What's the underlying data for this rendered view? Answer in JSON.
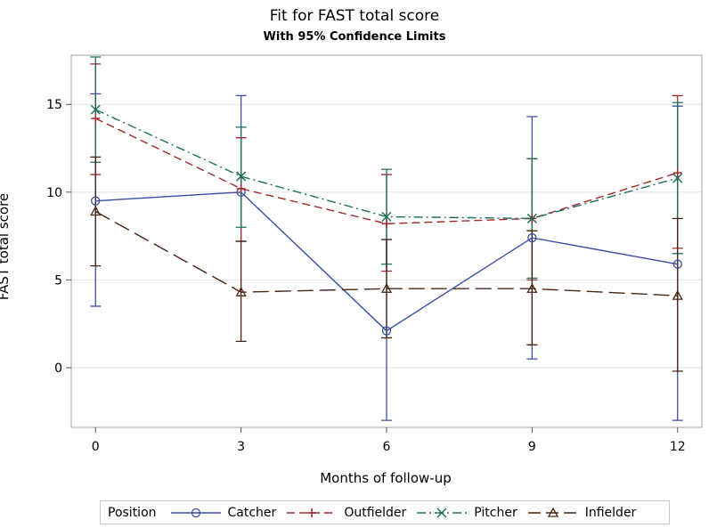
{
  "chart_data": {
    "type": "line",
    "title": "Fit for FAST total score",
    "subtitle": "With 95% Confidence Limits",
    "xlabel": "Months of follow-up",
    "ylabel": "FAST total score",
    "x": [
      0,
      3,
      6,
      9,
      12
    ],
    "xlim": [
      -0.5,
      12.5
    ],
    "ylim": [
      -3.4,
      17.8
    ],
    "yticks": [
      0,
      5,
      10,
      15
    ],
    "xticks": [
      0,
      3,
      6,
      9,
      12
    ],
    "grid": true,
    "legend_title": "Position",
    "legend_position": "bottom",
    "series": [
      {
        "name": "Catcher",
        "color": "#3b4ea6",
        "marker": "circle",
        "dash": "solid",
        "values": [
          9.5,
          10.0,
          2.1,
          7.4,
          5.9
        ],
        "lower": [
          3.5,
          7.2,
          -3.0,
          0.5,
          -3.0
        ],
        "upper": [
          15.6,
          15.5,
          7.3,
          14.3,
          14.9
        ]
      },
      {
        "name": "Outfielder",
        "color": "#a32a2a",
        "marker": "plus",
        "dash": "dash",
        "values": [
          14.2,
          10.2,
          8.2,
          8.5,
          11.1
        ],
        "lower": [
          11.0,
          7.2,
          5.5,
          5.0,
          6.8
        ],
        "upper": [
          17.3,
          13.1,
          11.0,
          11.9,
          15.5
        ]
      },
      {
        "name": "Pitcher",
        "color": "#1e6e5c",
        "marker": "x",
        "dash": "dashdot",
        "values": [
          14.7,
          10.9,
          8.6,
          8.5,
          10.8
        ],
        "lower": [
          11.7,
          8.0,
          5.9,
          5.1,
          6.5
        ],
        "upper": [
          17.7,
          13.7,
          11.3,
          11.9,
          15.1
        ]
      },
      {
        "name": "Infielder",
        "color": "#4a2410",
        "marker": "triangle",
        "dash": "longdash",
        "values": [
          8.9,
          4.3,
          4.5,
          4.5,
          4.1
        ],
        "lower": [
          5.8,
          1.5,
          1.7,
          1.3,
          -0.2
        ],
        "upper": [
          12.0,
          7.2,
          7.3,
          7.8,
          8.5
        ]
      }
    ]
  }
}
